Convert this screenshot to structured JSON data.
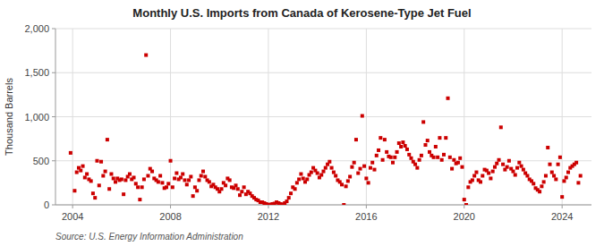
{
  "chart_data": {
    "type": "scatter",
    "title": "Monthly U.S. Imports from Canada of Kerosene-Type Jet Fuel",
    "ylabel": "Thousand Barrels",
    "source": "Source: U.S. Energy Information Administration",
    "color": "#cc0000",
    "marker": "square",
    "grid": true,
    "xlim": [
      2003.3,
      2025.2
    ],
    "xticks": [
      2004,
      2008,
      2012,
      2016,
      2020,
      2024
    ],
    "ylim": [
      0,
      2000
    ],
    "yticks": [
      0,
      500,
      {
        "value": 1000,
        "label": "1,000"
      },
      {
        "value": 1500,
        "label": "1,500"
      },
      {
        "value": 2000,
        "label": "2,000"
      }
    ],
    "x": [
      2003.917,
      2004.083,
      2004.167,
      2004.25,
      2004.333,
      2004.417,
      2004.5,
      2004.583,
      2004.667,
      2004.75,
      2004.833,
      2004.917,
      2005.0,
      2005.083,
      2005.167,
      2005.25,
      2005.333,
      2005.417,
      2005.5,
      2005.583,
      2005.667,
      2005.75,
      2005.833,
      2005.917,
      2006.0,
      2006.083,
      2006.167,
      2006.25,
      2006.333,
      2006.417,
      2006.5,
      2006.583,
      2006.667,
      2006.75,
      2006.833,
      2006.917,
      2007.0,
      2007.083,
      2007.167,
      2007.25,
      2007.333,
      2007.417,
      2007.5,
      2007.583,
      2007.667,
      2007.75,
      2007.833,
      2007.917,
      2008.0,
      2008.083,
      2008.167,
      2008.25,
      2008.333,
      2008.417,
      2008.5,
      2008.583,
      2008.667,
      2008.75,
      2008.833,
      2008.917,
      2009.0,
      2009.083,
      2009.167,
      2009.25,
      2009.333,
      2009.417,
      2009.5,
      2009.583,
      2009.667,
      2009.75,
      2009.833,
      2009.917,
      2010.0,
      2010.083,
      2010.167,
      2010.25,
      2010.333,
      2010.417,
      2010.5,
      2010.583,
      2010.667,
      2010.75,
      2010.833,
      2010.917,
      2011.0,
      2011.083,
      2011.167,
      2011.25,
      2011.333,
      2011.417,
      2011.5,
      2011.583,
      2011.667,
      2011.75,
      2011.833,
      2011.917,
      2012.0,
      2012.083,
      2012.167,
      2012.25,
      2012.333,
      2012.417,
      2012.5,
      2012.583,
      2012.667,
      2012.75,
      2012.833,
      2012.917,
      2013.0,
      2013.083,
      2013.167,
      2013.25,
      2013.333,
      2013.417,
      2013.5,
      2013.583,
      2013.667,
      2013.75,
      2013.833,
      2013.917,
      2014.0,
      2014.083,
      2014.167,
      2014.25,
      2014.333,
      2014.417,
      2014.5,
      2014.583,
      2014.667,
      2014.75,
      2014.833,
      2014.917,
      2015.0,
      2015.083,
      2015.167,
      2015.25,
      2015.333,
      2015.417,
      2015.5,
      2015.583,
      2015.667,
      2015.75,
      2015.833,
      2015.917,
      2016.0,
      2016.083,
      2016.167,
      2016.25,
      2016.333,
      2016.417,
      2016.5,
      2016.583,
      2016.667,
      2016.75,
      2016.833,
      2016.917,
      2017.0,
      2017.083,
      2017.167,
      2017.25,
      2017.333,
      2017.417,
      2017.5,
      2017.583,
      2017.667,
      2017.75,
      2017.833,
      2017.917,
      2018.0,
      2018.083,
      2018.167,
      2018.25,
      2018.333,
      2018.417,
      2018.5,
      2018.583,
      2018.667,
      2018.75,
      2018.833,
      2018.917,
      2019.0,
      2019.083,
      2019.167,
      2019.25,
      2019.333,
      2019.417,
      2019.5,
      2019.583,
      2019.667,
      2019.75,
      2019.833,
      2019.917,
      2020.0,
      2020.083,
      2020.167,
      2020.25,
      2020.333,
      2020.417,
      2020.5,
      2020.583,
      2020.667,
      2020.75,
      2020.833,
      2020.917,
      2021.0,
      2021.083,
      2021.167,
      2021.25,
      2021.333,
      2021.417,
      2021.5,
      2021.583,
      2021.667,
      2021.75,
      2021.833,
      2021.917,
      2022.0,
      2022.083,
      2022.167,
      2022.25,
      2022.333,
      2022.417,
      2022.5,
      2022.583,
      2022.667,
      2022.75,
      2022.833,
      2022.917,
      2023.0,
      2023.083,
      2023.167,
      2023.25,
      2023.333,
      2023.417,
      2023.5,
      2023.583,
      2023.667,
      2023.75,
      2023.833,
      2023.917,
      2024.0,
      2024.083,
      2024.167,
      2024.25,
      2024.333,
      2024.417,
      2024.5,
      2024.583,
      2024.667,
      2024.75
    ],
    "values": [
      590,
      160,
      370,
      420,
      390,
      440,
      310,
      350,
      290,
      270,
      130,
      80,
      500,
      220,
      490,
      330,
      380,
      740,
      180,
      350,
      300,
      260,
      300,
      280,
      290,
      120,
      280,
      320,
      350,
      290,
      310,
      240,
      200,
      60,
      200,
      290,
      1700,
      330,
      410,
      380,
      300,
      280,
      260,
      330,
      250,
      190,
      200,
      240,
      500,
      200,
      300,
      360,
      290,
      310,
      350,
      280,
      230,
      280,
      320,
      100,
      200,
      160,
      280,
      330,
      380,
      320,
      280,
      260,
      210,
      230,
      200,
      180,
      150,
      180,
      250,
      220,
      300,
      280,
      200,
      190,
      220,
      180,
      110,
      150,
      200,
      120,
      150,
      130,
      100,
      80,
      60,
      50,
      30,
      30,
      20,
      10,
      0,
      5,
      10,
      15,
      30,
      20,
      10,
      5,
      20,
      40,
      80,
      130,
      200,
      180,
      250,
      290,
      350,
      300,
      260,
      290,
      340,
      370,
      420,
      390,
      360,
      310,
      340,
      380,
      420,
      460,
      490,
      420,
      370,
      330,
      280,
      260,
      230,
      0,
      210,
      270,
      320,
      430,
      480,
      740,
      360,
      410,
      1010,
      440,
      300,
      250,
      420,
      480,
      400,
      560,
      620,
      760,
      510,
      740,
      600,
      550,
      540,
      480,
      540,
      600,
      700,
      660,
      710,
      670,
      630,
      570,
      530,
      490,
      460,
      420,
      510,
      560,
      940,
      680,
      730,
      600,
      560,
      540,
      660,
      540,
      760,
      510,
      570,
      760,
      1210,
      540,
      410,
      510,
      470,
      480,
      530,
      430,
      60,
      0,
      200,
      260,
      280,
      330,
      370,
      280,
      260,
      330,
      400,
      390,
      360,
      300,
      380,
      430,
      470,
      510,
      880,
      460,
      400,
      430,
      500,
      410,
      380,
      340,
      420,
      480,
      440,
      400,
      360,
      330,
      290,
      270,
      240,
      190,
      170,
      150,
      210,
      260,
      330,
      650,
      460,
      370,
      330,
      290,
      460,
      540,
      90,
      270,
      310,
      370,
      420,
      440,
      460,
      480,
      250,
      330
    ]
  }
}
